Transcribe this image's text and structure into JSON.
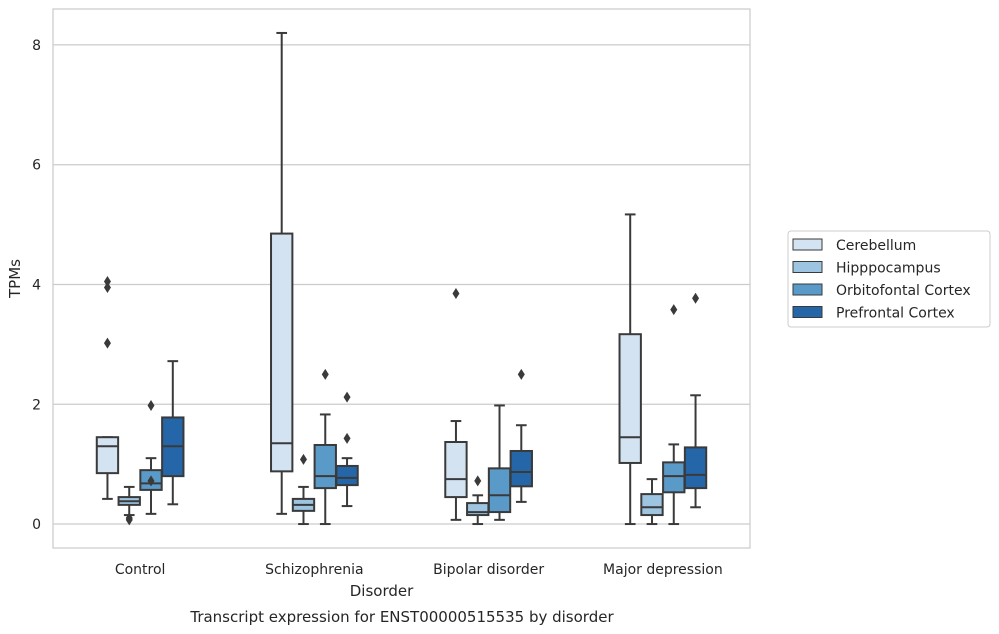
{
  "chart_data": {
    "type": "boxplot",
    "title": "Transcript expression for ENST00000515535 by disorder",
    "xlabel": "Disorder",
    "ylabel": "TPMs",
    "ylim": [
      -0.4,
      8.6
    ],
    "yticks": [
      0,
      2,
      4,
      6,
      8
    ],
    "grid": true,
    "legend_position": "right",
    "categories": [
      "Control",
      "Schizophrenia",
      "Bipolar disorder",
      "Major depression"
    ],
    "series": [
      {
        "name": "Cerebellum",
        "color": "#d4e3f2",
        "boxes": [
          {
            "whisker_low": 0.42,
            "q1": 0.85,
            "median": 1.3,
            "q3": 1.45,
            "whisker_high": 1.45,
            "outliers": [
              3.02,
              3.95,
              4.05
            ]
          },
          {
            "whisker_low": 0.17,
            "q1": 0.88,
            "median": 1.35,
            "q3": 4.85,
            "whisker_high": 8.2,
            "outliers": []
          },
          {
            "whisker_low": 0.07,
            "q1": 0.45,
            "median": 0.75,
            "q3": 1.37,
            "whisker_high": 1.72,
            "outliers": [
              3.85
            ]
          },
          {
            "whisker_low": 0.0,
            "q1": 1.02,
            "median": 1.45,
            "q3": 3.17,
            "whisker_high": 5.17,
            "outliers": []
          }
        ]
      },
      {
        "name": "Hipppocampus",
        "color": "#9dc4e0",
        "boxes": [
          {
            "whisker_low": 0.15,
            "q1": 0.32,
            "median": 0.38,
            "q3": 0.45,
            "whisker_high": 0.62,
            "outliers": [
              0.07,
              0.1
            ]
          },
          {
            "whisker_low": 0.0,
            "q1": 0.22,
            "median": 0.32,
            "q3": 0.42,
            "whisker_high": 0.62,
            "outliers": [
              1.08
            ]
          },
          {
            "whisker_low": 0.0,
            "q1": 0.15,
            "median": 0.2,
            "q3": 0.35,
            "whisker_high": 0.48,
            "outliers": [
              0.72
            ]
          },
          {
            "whisker_low": 0.0,
            "q1": 0.15,
            "median": 0.28,
            "q3": 0.5,
            "whisker_high": 0.75,
            "outliers": []
          }
        ]
      },
      {
        "name": "Orbitofontal Cortex",
        "color": "#5a9ac8",
        "boxes": [
          {
            "whisker_low": 0.17,
            "q1": 0.57,
            "median": 0.68,
            "q3": 0.9,
            "whisker_high": 1.1,
            "outliers": [
              0.72,
              1.98
            ]
          },
          {
            "whisker_low": 0.0,
            "q1": 0.6,
            "median": 0.8,
            "q3": 1.32,
            "whisker_high": 1.83,
            "outliers": [
              2.5
            ]
          },
          {
            "whisker_low": 0.07,
            "q1": 0.2,
            "median": 0.48,
            "q3": 0.93,
            "whisker_high": 1.98,
            "outliers": []
          },
          {
            "whisker_low": 0.0,
            "q1": 0.53,
            "median": 0.8,
            "q3": 1.03,
            "whisker_high": 1.33,
            "outliers": [
              3.58
            ]
          }
        ]
      },
      {
        "name": "Prefrontal Cortex",
        "color": "#2566a8",
        "boxes": [
          {
            "whisker_low": 0.33,
            "q1": 0.8,
            "median": 1.3,
            "q3": 1.78,
            "whisker_high": 2.72,
            "outliers": []
          },
          {
            "whisker_low": 0.3,
            "q1": 0.65,
            "median": 0.77,
            "q3": 0.97,
            "whisker_high": 1.1,
            "outliers": [
              1.43,
              2.12
            ]
          },
          {
            "whisker_low": 0.37,
            "q1": 0.63,
            "median": 0.87,
            "q3": 1.22,
            "whisker_high": 1.65,
            "outliers": [
              2.5
            ]
          },
          {
            "whisker_low": 0.28,
            "q1": 0.6,
            "median": 0.82,
            "q3": 1.28,
            "whisker_high": 2.15,
            "outliers": [
              3.77
            ]
          }
        ]
      }
    ]
  }
}
